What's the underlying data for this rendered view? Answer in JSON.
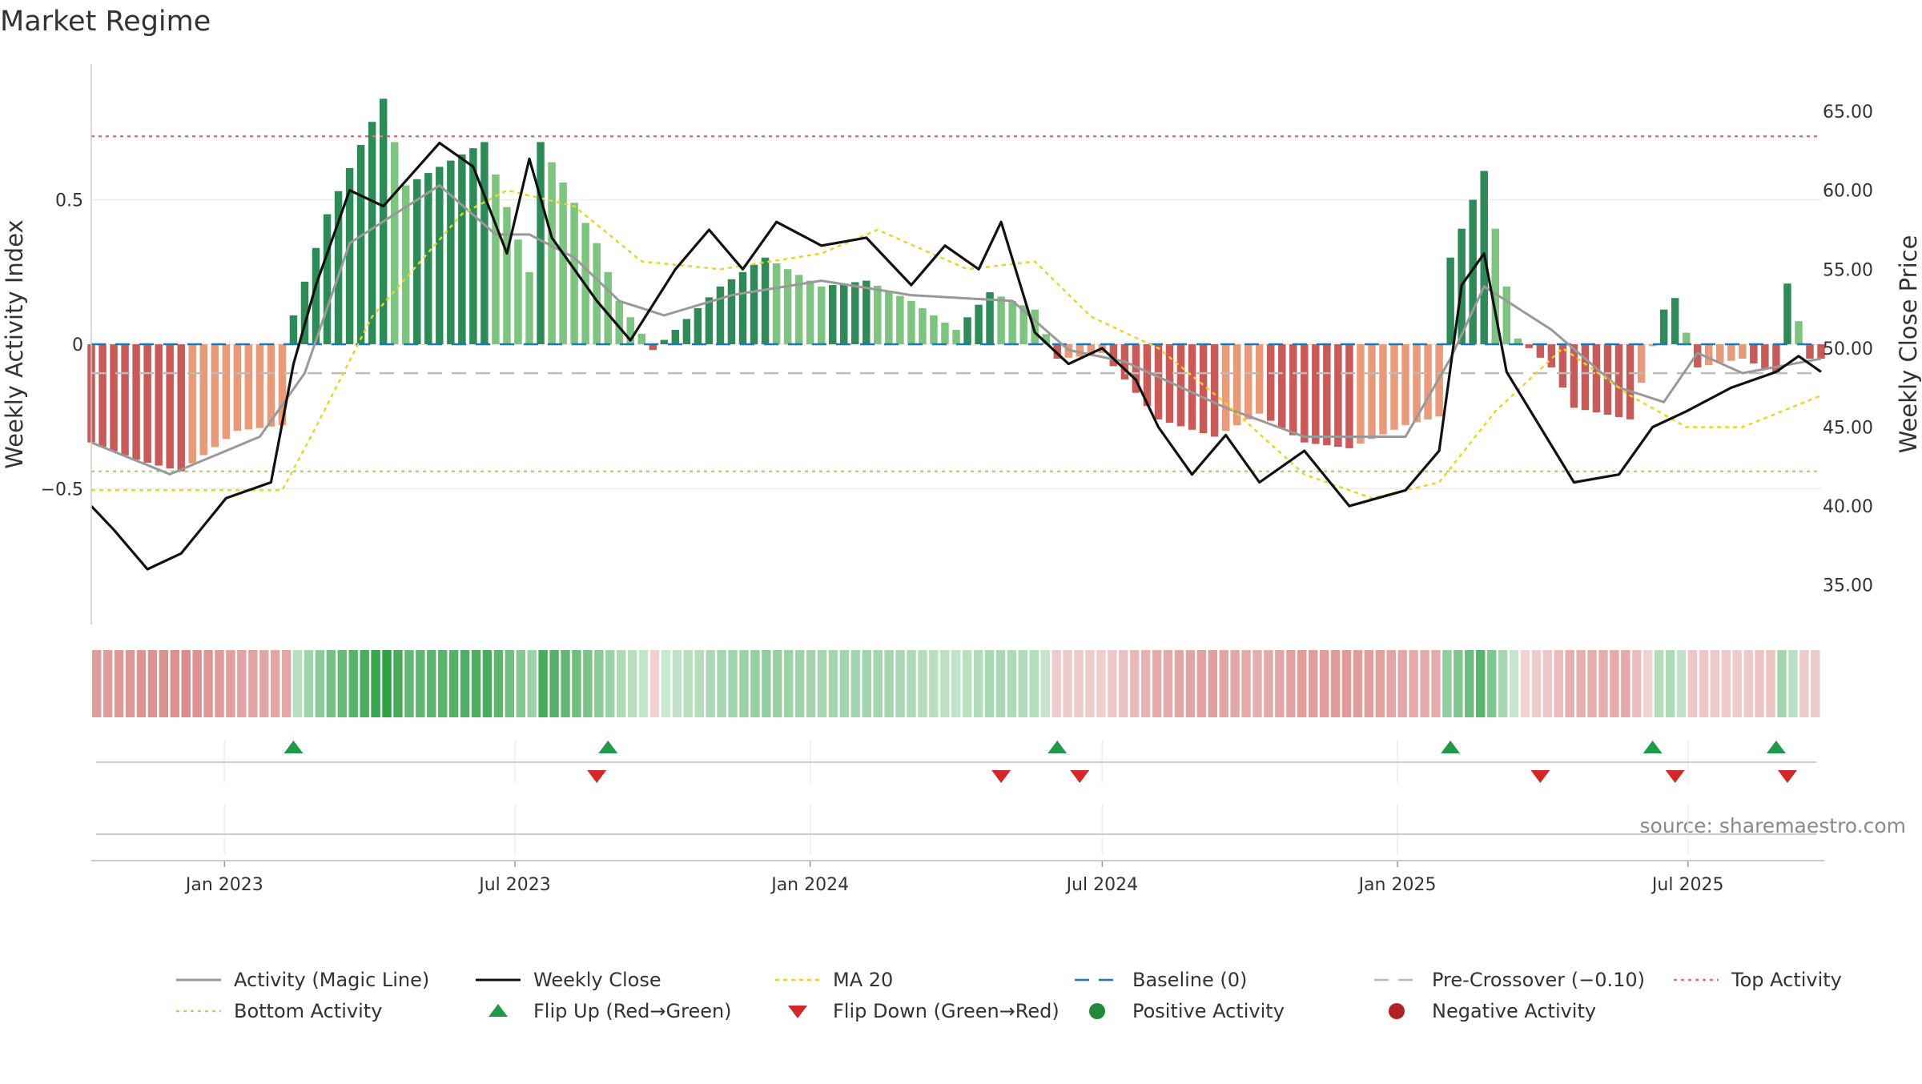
{
  "chart_data": {
    "type": "bar",
    "title": "Market Regime",
    "ylabel_left": "Weekly Activity Index",
    "ylabel_right": "Weekly Close Price",
    "source": "source: sharemaestro.com",
    "x_date_range": [
      "2022-10-10",
      "2025-09-22"
    ],
    "x_ticks": [
      {
        "date": "2023-01-01",
        "label": "Jan 2023"
      },
      {
        "date": "2023-07-01",
        "label": "Jul 2023"
      },
      {
        "date": "2024-01-01",
        "label": "Jan 2024"
      },
      {
        "date": "2024-07-01",
        "label": "Jul 2024"
      },
      {
        "date": "2025-01-01",
        "label": "Jan 2025"
      },
      {
        "date": "2025-07-01",
        "label": "Jul 2025"
      }
    ],
    "left_axis": {
      "ylim": [
        -0.97,
        0.97
      ],
      "ticks": [
        {
          "value": 0.5,
          "label": "0.5"
        },
        {
          "value": 0,
          "label": "0"
        },
        {
          "value": -0.5,
          "label": "−0.5"
        }
      ]
    },
    "right_axis": {
      "ylim": [
        32.5,
        68.0
      ],
      "ticks": [
        {
          "value": 65,
          "label": "65.00"
        },
        {
          "value": 60,
          "label": "60.00"
        },
        {
          "value": 55,
          "label": "55.00"
        },
        {
          "value": 50,
          "label": "50.00"
        },
        {
          "value": 45,
          "label": "45.00"
        },
        {
          "value": 40,
          "label": "40.00"
        },
        {
          "value": 35,
          "label": "35.00"
        }
      ]
    },
    "reference_lines": {
      "baseline": 0,
      "pre_crossover": -0.1,
      "top_activity": 0.72,
      "bottom_activity": -0.44
    },
    "colors": {
      "pos_strong": "#2e8b57",
      "pos_light": "#7cc47f",
      "neg_strong": "#c85a5a",
      "neg_light": "#e89a7a",
      "magic_line": "#999999",
      "weekly_close": "#111111",
      "ma20": "#e8d42a",
      "baseline": "#1f77b4",
      "pre_crossover": "#bbbbbb",
      "top_activity": "#e0707a",
      "bottom_activity": "#a8d878",
      "flip_up": "#1e9a4a",
      "flip_down": "#d62728",
      "positive_dot": "#1e8a3a",
      "negative_dot": "#b22222"
    },
    "activity_keys": [
      [
        "2022-10-10",
        -0.34
      ],
      [
        "2022-11-07",
        -0.4
      ],
      [
        "2022-12-05",
        -0.44
      ],
      [
        "2023-01-09",
        -0.3
      ],
      [
        "2023-02-06",
        -0.28
      ],
      [
        "2023-02-13",
        0.1
      ],
      [
        "2023-03-06",
        0.45
      ],
      [
        "2023-04-10",
        0.85
      ],
      [
        "2023-04-24",
        0.55
      ],
      [
        "2023-06-12",
        0.7
      ],
      [
        "2023-07-10",
        0.25
      ],
      [
        "2023-07-17",
        0.7
      ],
      [
        "2023-08-21",
        0.35
      ],
      [
        "2023-09-04",
        0.15
      ],
      [
        "2023-09-25",
        -0.02
      ],
      [
        "2023-10-09",
        0.05
      ],
      [
        "2023-11-06",
        0.2
      ],
      [
        "2023-12-04",
        0.3
      ],
      [
        "2024-01-08",
        0.2
      ],
      [
        "2024-02-05",
        0.22
      ],
      [
        "2024-03-04",
        0.15
      ],
      [
        "2024-04-01",
        0.05
      ],
      [
        "2024-04-22",
        0.18
      ],
      [
        "2024-05-20",
        0.12
      ],
      [
        "2024-06-03",
        -0.05
      ],
      [
        "2024-06-24",
        -0.04
      ],
      [
        "2024-07-01",
        -0.03
      ],
      [
        "2024-08-05",
        -0.26
      ],
      [
        "2024-09-09",
        -0.32
      ],
      [
        "2024-10-07",
        -0.24
      ],
      [
        "2024-11-04",
        -0.34
      ],
      [
        "2024-12-02",
        -0.36
      ],
      [
        "2025-01-06",
        -0.28
      ],
      [
        "2025-01-27",
        -0.25
      ],
      [
        "2025-02-03",
        0.3
      ],
      [
        "2025-02-24",
        0.6
      ],
      [
        "2025-03-10",
        0.2
      ],
      [
        "2025-03-17",
        0.02
      ],
      [
        "2025-04-07",
        -0.08
      ],
      [
        "2025-04-21",
        -0.22
      ],
      [
        "2025-05-26",
        -0.26
      ],
      [
        "2025-06-16",
        0.12
      ],
      [
        "2025-06-23",
        0.16
      ],
      [
        "2025-07-07",
        -0.08
      ],
      [
        "2025-08-04",
        -0.05
      ],
      [
        "2025-08-25",
        -0.1
      ],
      [
        "2025-09-01",
        0.21
      ],
      [
        "2025-09-15",
        -0.05
      ]
    ],
    "weekly_close_keys": [
      [
        "2022-10-10",
        40.0
      ],
      [
        "2022-10-24",
        38.5
      ],
      [
        "2022-11-14",
        36.0
      ],
      [
        "2022-12-05",
        37.0
      ],
      [
        "2023-01-02",
        40.5
      ],
      [
        "2023-01-30",
        41.5
      ],
      [
        "2023-02-13",
        49.0
      ],
      [
        "2023-02-27",
        54.0
      ],
      [
        "2023-03-20",
        60.0
      ],
      [
        "2023-04-10",
        59.0
      ],
      [
        "2023-05-15",
        63.0
      ],
      [
        "2023-06-05",
        61.5
      ],
      [
        "2023-06-26",
        56.0
      ],
      [
        "2023-07-10",
        62.0
      ],
      [
        "2023-07-24",
        57.0
      ],
      [
        "2023-08-21",
        53.0
      ],
      [
        "2023-09-11",
        50.5
      ],
      [
        "2023-10-09",
        55.0
      ],
      [
        "2023-10-30",
        57.5
      ],
      [
        "2023-11-20",
        55.0
      ],
      [
        "2023-12-11",
        58.0
      ],
      [
        "2024-01-08",
        56.5
      ],
      [
        "2024-02-05",
        57.0
      ],
      [
        "2024-03-04",
        54.0
      ],
      [
        "2024-03-25",
        56.5
      ],
      [
        "2024-04-15",
        55.0
      ],
      [
        "2024-04-29",
        58.0
      ],
      [
        "2024-05-20",
        51.0
      ],
      [
        "2024-06-10",
        49.0
      ],
      [
        "2024-07-01",
        50.0
      ],
      [
        "2024-07-22",
        48.0
      ],
      [
        "2024-08-05",
        45.0
      ],
      [
        "2024-08-26",
        42.0
      ],
      [
        "2024-09-16",
        44.5
      ],
      [
        "2024-10-07",
        41.5
      ],
      [
        "2024-11-04",
        43.5
      ],
      [
        "2024-12-02",
        40.0
      ],
      [
        "2025-01-06",
        41.0
      ],
      [
        "2025-01-27",
        43.5
      ],
      [
        "2025-02-10",
        54.0
      ],
      [
        "2025-02-24",
        56.0
      ],
      [
        "2025-03-10",
        48.5
      ],
      [
        "2025-03-31",
        45.0
      ],
      [
        "2025-04-21",
        41.5
      ],
      [
        "2025-05-19",
        42.0
      ],
      [
        "2025-06-09",
        45.0
      ],
      [
        "2025-06-30",
        46.0
      ],
      [
        "2025-07-28",
        47.5
      ],
      [
        "2025-08-25",
        48.5
      ],
      [
        "2025-09-08",
        49.5
      ],
      [
        "2025-09-22",
        48.5
      ]
    ],
    "magic_line_keys": [
      [
        "2022-10-10",
        -0.34
      ],
      [
        "2022-11-28",
        -0.45
      ],
      [
        "2023-01-23",
        -0.32
      ],
      [
        "2023-02-20",
        -0.1
      ],
      [
        "2023-03-20",
        0.35
      ],
      [
        "2023-05-15",
        0.55
      ],
      [
        "2023-06-19",
        0.38
      ],
      [
        "2023-07-10",
        0.38
      ],
      [
        "2023-08-07",
        0.3
      ],
      [
        "2023-09-04",
        0.15
      ],
      [
        "2023-10-02",
        0.1
      ],
      [
        "2023-11-13",
        0.17
      ],
      [
        "2024-01-08",
        0.22
      ],
      [
        "2024-03-04",
        0.17
      ],
      [
        "2024-05-06",
        0.15
      ],
      [
        "2024-06-10",
        -0.02
      ],
      [
        "2024-07-15",
        -0.06
      ],
      [
        "2024-09-16",
        -0.22
      ],
      [
        "2024-11-04",
        -0.32
      ],
      [
        "2025-01-06",
        -0.32
      ],
      [
        "2025-02-03",
        -0.05
      ],
      [
        "2025-02-24",
        0.2
      ],
      [
        "2025-04-07",
        0.05
      ],
      [
        "2025-05-19",
        -0.15
      ],
      [
        "2025-06-16",
        -0.2
      ],
      [
        "2025-07-07",
        -0.03
      ],
      [
        "2025-08-04",
        -0.1
      ],
      [
        "2025-09-22",
        -0.05
      ]
    ],
    "ma20_keys": [
      [
        "2022-10-10",
        41.0
      ],
      [
        "2023-02-06",
        41.0
      ],
      [
        "2023-02-27",
        45.0
      ],
      [
        "2023-04-03",
        52.0
      ],
      [
        "2023-05-29",
        58.5
      ],
      [
        "2023-06-26",
        60.0
      ],
      [
        "2023-08-07",
        59.0
      ],
      [
        "2023-09-18",
        55.5
      ],
      [
        "2023-11-06",
        55.0
      ],
      [
        "2024-01-08",
        56.0
      ],
      [
        "2024-02-12",
        57.5
      ],
      [
        "2024-04-08",
        55.0
      ],
      [
        "2024-05-20",
        55.5
      ],
      [
        "2024-06-24",
        52.0
      ],
      [
        "2024-08-05",
        50.0
      ],
      [
        "2024-09-16",
        46.5
      ],
      [
        "2024-11-04",
        42.0
      ],
      [
        "2024-12-16",
        40.5
      ],
      [
        "2025-01-27",
        41.5
      ],
      [
        "2025-03-03",
        46.0
      ],
      [
        "2025-04-14",
        50.0
      ],
      [
        "2025-05-26",
        47.0
      ],
      [
        "2025-06-30",
        45.0
      ],
      [
        "2025-08-04",
        45.0
      ],
      [
        "2025-09-22",
        47.0
      ]
    ],
    "flip_up": [
      "2023-02-13",
      "2023-08-28",
      "2024-06-03",
      "2025-02-03",
      "2025-06-09",
      "2025-08-25"
    ],
    "flip_down": [
      "2023-08-21",
      "2024-04-29",
      "2024-06-17",
      "2025-03-31",
      "2025-06-23",
      "2025-09-01"
    ],
    "legend": [
      {
        "key": "magic",
        "label": "Activity (Magic Line)"
      },
      {
        "key": "close",
        "label": "Weekly Close"
      },
      {
        "key": "ma20",
        "label": "MA 20"
      },
      {
        "key": "baseline",
        "label": "Baseline (0)"
      },
      {
        "key": "precross",
        "label": "Pre-Crossover (−0.10)"
      },
      {
        "key": "top",
        "label": "Top Activity"
      },
      {
        "key": "bottom",
        "label": "Bottom Activity"
      },
      {
        "key": "flipup",
        "label": "Flip Up (Red→Green)"
      },
      {
        "key": "flipdown",
        "label": "Flip Down (Green→Red)"
      },
      {
        "key": "posdot",
        "label": "Positive Activity"
      },
      {
        "key": "negdot",
        "label": "Negative Activity"
      }
    ]
  }
}
